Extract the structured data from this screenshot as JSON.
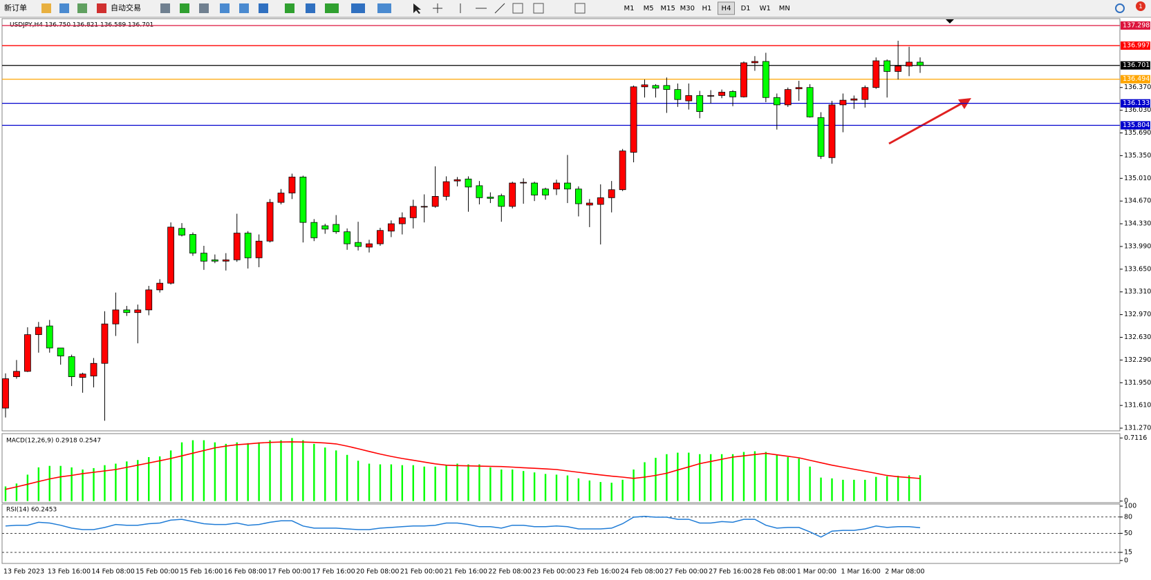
{
  "toolbar": {
    "buttons": [
      "新订单",
      "自动交易"
    ],
    "timeframes": [
      "M1",
      "M5",
      "M15",
      "M30",
      "H1",
      "H4",
      "D1",
      "W1",
      "MN"
    ],
    "active_timeframe": "H4",
    "alert_count": "1"
  },
  "chart_data": [
    {
      "type": "candlestick",
      "title": "USDJPY,H4  136.750 136.821 136.589 136.701",
      "up_color": "#ff0000",
      "down_color": "#00ff00",
      "categories": [
        "13 Feb 2023",
        null,
        null,
        null,
        "13 Feb 16:00",
        null,
        null,
        null,
        "14 Feb 08:00",
        null,
        null,
        null,
        "15 Feb 00:00",
        null,
        null,
        null,
        "15 Feb 16:00",
        null,
        null,
        null,
        "16 Feb 08:00",
        null,
        null,
        null,
        "17 Feb 00:00",
        null,
        null,
        null,
        "17 Feb 16:00",
        null,
        null,
        null,
        "20 Feb 08:00",
        null,
        null,
        null,
        "21 Feb 00:00",
        null,
        null,
        null,
        "21 Feb 16:00",
        null,
        null,
        null,
        "22 Feb 08:00",
        null,
        null,
        null,
        "23 Feb 00:00",
        null,
        null,
        null,
        "23 Feb 16:00",
        null,
        null,
        null,
        "24 Feb 08:00",
        null,
        null,
        null,
        "27 Feb 00:00",
        null,
        null,
        null,
        "27 Feb 16:00",
        null,
        null,
        null,
        "28 Feb 08:00",
        null,
        null,
        null,
        "1 Mar 00:00",
        null,
        null,
        null,
        "1 Mar 16:00",
        null,
        null,
        null,
        "2 Mar 08:00",
        null,
        null,
        null
      ],
      "open": [
        131.57,
        132.04,
        132.12,
        132.67,
        132.8,
        132.47,
        132.34,
        132.03,
        132.05,
        132.24,
        132.83,
        133.04,
        133.0,
        133.04,
        133.34,
        133.44,
        134.26,
        134.17,
        133.89,
        133.79,
        133.77,
        133.79,
        134.19,
        133.82,
        134.07,
        134.65,
        134.79,
        135.03,
        134.35,
        134.3,
        134.32,
        134.21,
        134.05,
        133.98,
        134.03,
        134.22,
        134.33,
        134.42,
        134.58,
        134.59,
        134.74,
        134.97,
        135.0,
        134.9,
        134.73,
        134.75,
        134.59,
        134.94,
        134.94,
        134.85,
        134.85,
        134.94,
        134.85,
        134.61,
        134.62,
        134.72,
        134.84,
        135.4,
        136.38,
        136.4,
        136.4,
        136.34,
        136.17,
        136.25,
        136.24,
        136.25,
        136.31,
        136.23,
        136.74,
        136.76,
        136.22,
        136.11,
        136.35,
        136.37,
        135.92,
        135.32,
        136.11,
        136.18,
        136.19,
        136.37,
        136.77,
        136.61,
        136.69,
        136.75
      ],
      "high": [
        132.09,
        132.29,
        132.78,
        132.86,
        132.89,
        132.47,
        132.37,
        132.1,
        132.32,
        133.02,
        133.3,
        133.1,
        133.12,
        133.4,
        133.5,
        134.35,
        134.34,
        134.2,
        134.0,
        133.87,
        133.89,
        134.48,
        134.22,
        134.17,
        134.7,
        134.85,
        135.08,
        135.05,
        134.4,
        134.33,
        134.46,
        134.26,
        134.36,
        134.09,
        134.27,
        134.38,
        134.5,
        134.69,
        134.77,
        135.19,
        135.04,
        135.03,
        135.04,
        134.97,
        134.8,
        134.78,
        134.96,
        135.01,
        134.96,
        134.87,
        134.99,
        135.36,
        134.89,
        134.7,
        134.92,
        134.97,
        135.45,
        136.4,
        136.49,
        136.42,
        136.52,
        136.43,
        136.43,
        136.32,
        136.33,
        136.34,
        136.33,
        136.76,
        136.84,
        136.89,
        136.28,
        136.37,
        136.47,
        136.42,
        136.0,
        136.17,
        136.28,
        136.25,
        136.4,
        136.82,
        136.79,
        137.07,
        136.98,
        136.821
      ],
      "low": [
        131.43,
        132.01,
        132.11,
        132.4,
        132.4,
        132.22,
        131.9,
        131.8,
        131.88,
        131.38,
        132.65,
        132.95,
        132.54,
        132.96,
        133.3,
        133.42,
        134.14,
        133.85,
        133.64,
        133.74,
        133.63,
        133.76,
        133.66,
        133.68,
        134.05,
        134.62,
        134.7,
        134.05,
        134.07,
        134.18,
        134.18,
        133.94,
        133.93,
        133.9,
        134.0,
        134.13,
        134.17,
        134.26,
        134.35,
        134.57,
        134.68,
        134.89,
        134.51,
        134.62,
        134.64,
        134.36,
        134.56,
        134.63,
        134.67,
        134.69,
        134.76,
        134.64,
        134.44,
        134.28,
        134.02,
        134.5,
        134.82,
        135.25,
        136.22,
        136.22,
        135.99,
        136.08,
        136.04,
        135.91,
        136.13,
        136.21,
        136.09,
        136.22,
        136.62,
        136.15,
        135.74,
        136.08,
        136.17,
        135.92,
        135.3,
        135.23,
        135.7,
        136.05,
        136.07,
        136.35,
        136.22,
        136.49,
        136.54,
        136.589
      ],
      "close": [
        132.01,
        132.12,
        132.67,
        132.78,
        132.47,
        132.35,
        132.04,
        132.08,
        132.24,
        132.83,
        133.04,
        133.0,
        133.04,
        133.34,
        133.44,
        134.28,
        134.16,
        133.89,
        133.77,
        133.77,
        133.79,
        134.19,
        133.82,
        134.07,
        134.65,
        134.79,
        135.03,
        134.35,
        134.12,
        134.25,
        134.21,
        134.03,
        133.99,
        134.03,
        134.23,
        134.33,
        134.42,
        134.59,
        134.59,
        134.74,
        134.96,
        134.99,
        134.88,
        134.72,
        134.71,
        134.59,
        134.94,
        134.95,
        134.76,
        134.76,
        134.94,
        134.85,
        134.63,
        134.64,
        134.72,
        134.84,
        135.42,
        136.38,
        136.41,
        136.36,
        136.34,
        136.19,
        136.25,
        136.01,
        136.25,
        136.3,
        136.23,
        136.74,
        136.76,
        136.22,
        136.11,
        136.34,
        136.37,
        135.93,
        135.34,
        136.11,
        136.18,
        136.2,
        136.37,
        136.77,
        136.61,
        136.69,
        136.75,
        136.701
      ],
      "levels": [
        {
          "value": 137.298,
          "color": "#dc143c"
        },
        {
          "value": 136.997,
          "color": "#ff0000"
        },
        {
          "value": 136.701,
          "color": "#000000"
        },
        {
          "value": 136.494,
          "color": "#ffa500"
        },
        {
          "value": 136.133,
          "color": "#0000cd"
        },
        {
          "value": 135.804,
          "color": "#0000cd"
        }
      ],
      "ylim": [
        131.25,
        137.37
      ],
      "yticks": [
        {
          "value": 136.37,
          "label": "136.370"
        },
        {
          "value": 136.03,
          "label": "136.030"
        },
        {
          "value": 135.69,
          "label": "135.690"
        },
        {
          "value": 135.35,
          "label": "135.350"
        },
        {
          "value": 135.01,
          "label": "135.010"
        },
        {
          "value": 134.67,
          "label": "134.670"
        },
        {
          "value": 134.33,
          "label": "134.330"
        },
        {
          "value": 133.99,
          "label": "133.990"
        },
        {
          "value": 133.65,
          "label": "133.650"
        },
        {
          "value": 133.31,
          "label": "133.310"
        },
        {
          "value": 132.97,
          "label": "132.970"
        },
        {
          "value": 132.63,
          "label": "132.630"
        },
        {
          "value": 132.29,
          "label": "132.290"
        },
        {
          "value": 131.95,
          "label": "131.950"
        },
        {
          "value": 131.61,
          "label": "131.610"
        },
        {
          "value": 131.27,
          "label": "131.270"
        }
      ],
      "grid": false
    },
    {
      "type": "combo",
      "title": "MACD(12,26,9) 0.2918 0.2547",
      "series": [
        {
          "type": "bar",
          "color": "#00ff00",
          "values": [
            0.165,
            0.198,
            0.298,
            0.38,
            0.397,
            0.397,
            0.38,
            0.356,
            0.372,
            0.405,
            0.422,
            0.447,
            0.463,
            0.496,
            0.504,
            0.571,
            0.662,
            0.686,
            0.686,
            0.662,
            0.645,
            0.662,
            0.653,
            0.662,
            0.686,
            0.686,
            0.711,
            0.686,
            0.645,
            0.604,
            0.571,
            0.521,
            0.455,
            0.422,
            0.414,
            0.414,
            0.405,
            0.405,
            0.389,
            0.389,
            0.405,
            0.422,
            0.414,
            0.414,
            0.38,
            0.356,
            0.356,
            0.339,
            0.323,
            0.306,
            0.298,
            0.289,
            0.256,
            0.232,
            0.215,
            0.207,
            0.24,
            0.356,
            0.438,
            0.488,
            0.529,
            0.546,
            0.546,
            0.529,
            0.529,
            0.529,
            0.529,
            0.554,
            0.562,
            0.554,
            0.521,
            0.496,
            0.48,
            0.389,
            0.265,
            0.256,
            0.24,
            0.24,
            0.24,
            0.273,
            0.28,
            0.285,
            0.29,
            0.2918
          ]
        },
        {
          "type": "line",
          "color": "#ff0000",
          "values": [
            0.132,
            0.16,
            0.19,
            0.22,
            0.25,
            0.273,
            0.29,
            0.31,
            0.325,
            0.34,
            0.356,
            0.38,
            0.405,
            0.43,
            0.455,
            0.48,
            0.51,
            0.54,
            0.57,
            0.6,
            0.62,
            0.635,
            0.645,
            0.655,
            0.662,
            0.666,
            0.668,
            0.666,
            0.662,
            0.655,
            0.645,
            0.62,
            0.59,
            0.56,
            0.53,
            0.504,
            0.48,
            0.46,
            0.44,
            0.42,
            0.405,
            0.4,
            0.397,
            0.394,
            0.392,
            0.389,
            0.383,
            0.376,
            0.37,
            0.363,
            0.356,
            0.34,
            0.325,
            0.31,
            0.295,
            0.281,
            0.27,
            0.256,
            0.27,
            0.29,
            0.314,
            0.35,
            0.385,
            0.422,
            0.447,
            0.472,
            0.496,
            0.51,
            0.525,
            0.538,
            0.522,
            0.505,
            0.488,
            0.46,
            0.432,
            0.405,
            0.382,
            0.359,
            0.336,
            0.313,
            0.289,
            0.275,
            0.265,
            0.2547
          ]
        }
      ],
      "ylim": [
        0,
        0.7116
      ],
      "yticks": [
        0.7116,
        0
      ],
      "grid": false
    },
    {
      "type": "line",
      "title": "RSI(14) 60.2453",
      "color": "#1e7bd6",
      "values": [
        63.5,
        64.9,
        64.9,
        70.3,
        68.9,
        64.9,
        59.5,
        56.8,
        56.8,
        60.8,
        66.2,
        64.9,
        64.9,
        67.6,
        68.9,
        74.3,
        75.7,
        71.6,
        67.6,
        66.2,
        66.2,
        68.9,
        64.9,
        66.2,
        70.3,
        73.0,
        73.0,
        63.5,
        59.5,
        59.5,
        59.5,
        58.1,
        56.8,
        56.8,
        59.5,
        60.8,
        62.2,
        63.5,
        63.5,
        64.9,
        68.9,
        68.9,
        66.2,
        62.2,
        62.2,
        59.5,
        64.9,
        64.9,
        62.2,
        62.2,
        63.5,
        62.2,
        58.1,
        58.1,
        58.1,
        59.5,
        67.6,
        79.7,
        81.1,
        79.7,
        79.7,
        75.7,
        75.7,
        68.9,
        68.9,
        71.6,
        70.3,
        75.7,
        75.7,
        64.9,
        59.5,
        60.8,
        60.8,
        52.7,
        43.2,
        54.1,
        55.4,
        55.4,
        58.1,
        63.5,
        60.8,
        62.2,
        62.2,
        60.2453
      ],
      "ylim": [
        0,
        100
      ],
      "yticks": [
        100,
        80,
        50,
        15,
        0
      ],
      "grid": true
    }
  ]
}
